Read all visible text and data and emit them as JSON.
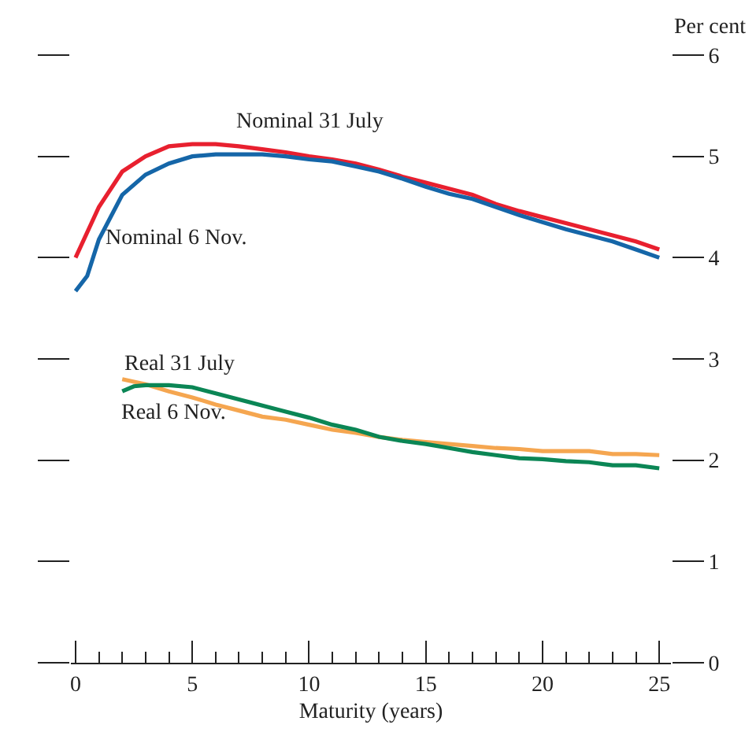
{
  "chart_data": {
    "type": "line",
    "xlabel": "Maturity (years)",
    "ylabel": "Per cent",
    "xlim": [
      -0.2,
      25.5
    ],
    "xticks": [
      0,
      5,
      10,
      15,
      20,
      25
    ],
    "ylim": [
      0,
      6
    ],
    "yticks": [
      0,
      1,
      2,
      3,
      4,
      5,
      6
    ],
    "legend": false,
    "marker": "none",
    "line_style": "solid",
    "series": [
      {
        "name": "Nominal 31 July",
        "color": "#e8202f",
        "x": [
          0,
          1,
          2,
          3,
          4,
          5,
          6,
          7,
          8,
          9,
          10,
          11,
          12,
          13,
          14,
          15,
          16,
          17,
          18,
          19,
          20,
          21,
          22,
          23,
          24,
          25
        ],
        "values": [
          4.0,
          4.5,
          4.85,
          5.0,
          5.1,
          5.12,
          5.12,
          5.1,
          5.07,
          5.04,
          5.0,
          4.97,
          4.93,
          4.87,
          4.8,
          4.74,
          4.68,
          4.62,
          4.53,
          4.46,
          4.4,
          4.34,
          4.28,
          4.22,
          4.16,
          4.08
        ]
      },
      {
        "name": "Nominal 6 Nov.",
        "color": "#1566a8",
        "x": [
          0,
          0.5,
          1,
          2,
          3,
          4,
          5,
          6,
          7,
          8,
          9,
          10,
          11,
          12,
          13,
          14,
          15,
          16,
          17,
          18,
          19,
          20,
          21,
          22,
          23,
          24,
          25
        ],
        "values": [
          3.67,
          3.82,
          4.18,
          4.62,
          4.82,
          4.93,
          5.0,
          5.02,
          5.02,
          5.02,
          5.0,
          4.97,
          4.95,
          4.9,
          4.85,
          4.78,
          4.7,
          4.63,
          4.58,
          4.5,
          4.42,
          4.35,
          4.28,
          4.22,
          4.16,
          4.08,
          4.0
        ]
      },
      {
        "name": "Real 31 July",
        "color": "#f5a650",
        "x": [
          2,
          3,
          4,
          5,
          6,
          7,
          8,
          9,
          10,
          11,
          12,
          13,
          14,
          15,
          16,
          17,
          18,
          19,
          20,
          21,
          22,
          23,
          24,
          25
        ],
        "values": [
          2.8,
          2.75,
          2.68,
          2.62,
          2.55,
          2.49,
          2.43,
          2.4,
          2.35,
          2.3,
          2.27,
          2.23,
          2.2,
          2.18,
          2.16,
          2.14,
          2.12,
          2.11,
          2.09,
          2.09,
          2.09,
          2.06,
          2.06,
          2.05
        ]
      },
      {
        "name": "Real 6 Nov.",
        "color": "#0b8655",
        "x": [
          2,
          2.5,
          3,
          4,
          5,
          6,
          7,
          8,
          9,
          10,
          11,
          12,
          13,
          14,
          15,
          16,
          17,
          18,
          19,
          20,
          21,
          22,
          23,
          24,
          25
        ],
        "values": [
          2.68,
          2.73,
          2.74,
          2.74,
          2.72,
          2.66,
          2.6,
          2.54,
          2.48,
          2.42,
          2.35,
          2.3,
          2.23,
          2.19,
          2.16,
          2.12,
          2.08,
          2.05,
          2.02,
          2.01,
          1.99,
          1.98,
          1.95,
          1.95,
          1.92
        ]
      }
    ]
  }
}
